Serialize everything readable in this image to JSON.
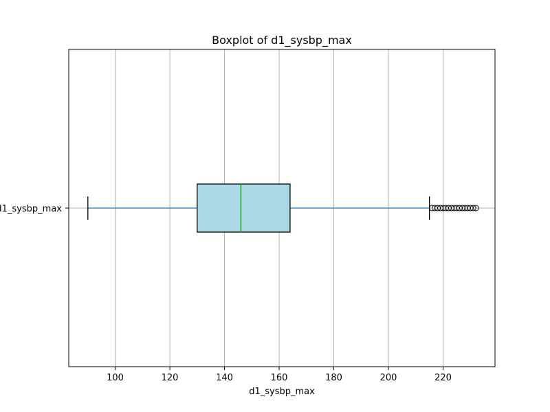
{
  "chart_data": {
    "type": "boxplot",
    "orientation": "horizontal",
    "title": "Boxplot of d1_sysbp_max",
    "xlabel": "d1_sysbp_max",
    "ylabel": "",
    "xlim": [
      83,
      239
    ],
    "xticks": [
      100,
      120,
      140,
      160,
      180,
      200,
      220
    ],
    "xtick_labels": [
      "100",
      "120",
      "140",
      "160",
      "180",
      "200",
      "220"
    ],
    "ytick_labels": [
      "d1_sysbp_max"
    ],
    "grid": true,
    "series": [
      {
        "name": "d1_sysbp_max",
        "whisker_low": 90,
        "q1": 130,
        "median": 146,
        "q3": 164,
        "whisker_high": 215,
        "outliers": [
          216,
          217,
          218,
          219,
          220,
          221,
          222,
          223,
          224,
          225,
          226,
          227,
          228,
          229,
          230,
          231,
          232
        ]
      }
    ],
    "colors": {
      "box_fill": "#add8e6",
      "median": "#2ca02c",
      "whisker": "#1f77b4",
      "grid": "#b0b0b0"
    }
  }
}
